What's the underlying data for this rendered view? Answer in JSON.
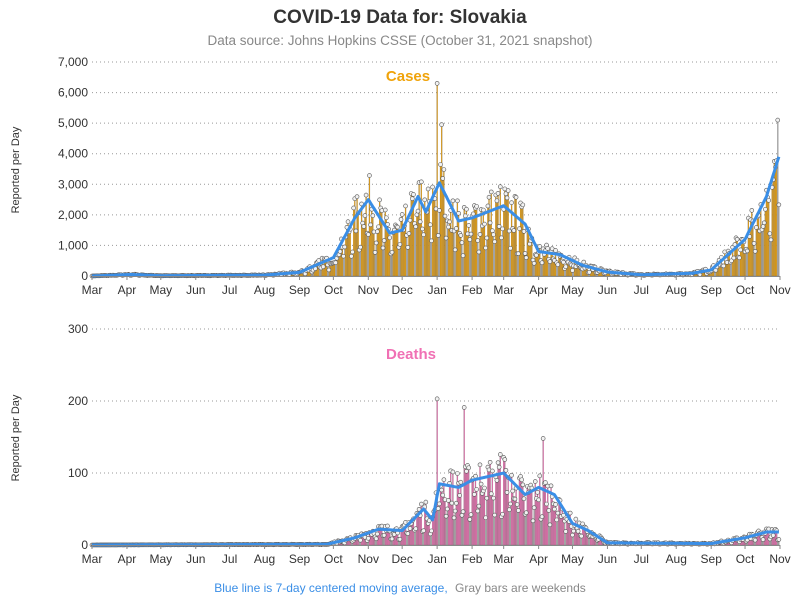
{
  "header": {
    "title": "COVID-19 Data for: Slovakia",
    "subtitle": "Data source: Johns Hopkins CSSE (October 31, 2021 snapshot)"
  },
  "footer": {
    "part1": "Blue line is 7-day centered moving average,",
    "part2": "Gray bars are weekends"
  },
  "colors": {
    "cases": "#f0a30a",
    "deaths": "#f070b4",
    "moving_average": "#3a8ee6",
    "footer_blue": "#3a8ee6",
    "footer_gray": "#888888"
  },
  "chart_data": [
    {
      "type": "bar",
      "title": "Cases",
      "ylabel": "Reported per Day",
      "ylim": [
        0,
        7000
      ],
      "yticks": [
        "0",
        "1,000",
        "2,000",
        "3,000",
        "4,000",
        "5,000",
        "6,000",
        "7,000"
      ],
      "ytick_values": [
        0,
        1000,
        2000,
        3000,
        4000,
        5000,
        6000,
        7000
      ],
      "x_labels": [
        "Mar",
        "Apr",
        "May",
        "Jun",
        "Jul",
        "Aug",
        "Sep",
        "Oct",
        "Nov",
        "Dec",
        "Jan",
        "Feb",
        "Mar",
        "Apr",
        "May",
        "Jun",
        "Jul",
        "Aug",
        "Sep",
        "Oct",
        "Nov"
      ],
      "x_range": [
        "2020-03-01",
        "2021-11-01"
      ],
      "series_name": "Cases",
      "overlay": "7-day centered moving average",
      "monthly_approx_daily_avg": [
        {
          "month": "2020-03",
          "value": 20
        },
        {
          "month": "2020-04",
          "value": 45
        },
        {
          "month": "2020-05",
          "value": 5
        },
        {
          "month": "2020-06",
          "value": 10
        },
        {
          "month": "2020-07",
          "value": 20
        },
        {
          "month": "2020-08",
          "value": 60
        },
        {
          "month": "2020-09",
          "value": 180
        },
        {
          "month": "2020-10",
          "value": 1300
        },
        {
          "month": "2020-11",
          "value": 1800
        },
        {
          "month": "2020-12",
          "value": 2300
        },
        {
          "month": "2021-01",
          "value": 2200
        },
        {
          "month": "2021-02",
          "value": 2000
        },
        {
          "month": "2021-03",
          "value": 1900
        },
        {
          "month": "2021-04",
          "value": 900
        },
        {
          "month": "2021-05",
          "value": 300
        },
        {
          "month": "2021-06",
          "value": 80
        },
        {
          "month": "2021-07",
          "value": 40
        },
        {
          "month": "2021-08",
          "value": 90
        },
        {
          "month": "2021-09",
          "value": 600
        },
        {
          "month": "2021-10",
          "value": 2200
        }
      ],
      "moving_average_keypoints": [
        {
          "x": "2020-03-01",
          "y": 0
        },
        {
          "x": "2020-04-05",
          "y": 50
        },
        {
          "x": "2020-05-01",
          "y": 10
        },
        {
          "x": "2020-08-01",
          "y": 30
        },
        {
          "x": "2020-09-01",
          "y": 120
        },
        {
          "x": "2020-10-01",
          "y": 600
        },
        {
          "x": "2020-10-20",
          "y": 1900
        },
        {
          "x": "2020-11-01",
          "y": 2500
        },
        {
          "x": "2020-11-20",
          "y": 1400
        },
        {
          "x": "2020-12-01",
          "y": 1500
        },
        {
          "x": "2020-12-15",
          "y": 2600
        },
        {
          "x": "2020-12-22",
          "y": 2100
        },
        {
          "x": "2021-01-03",
          "y": 3050
        },
        {
          "x": "2021-01-20",
          "y": 1800
        },
        {
          "x": "2021-02-01",
          "y": 1900
        },
        {
          "x": "2021-03-01",
          "y": 2300
        },
        {
          "x": "2021-03-20",
          "y": 1700
        },
        {
          "x": "2021-04-01",
          "y": 800
        },
        {
          "x": "2021-04-20",
          "y": 700
        },
        {
          "x": "2021-05-10",
          "y": 350
        },
        {
          "x": "2021-06-01",
          "y": 130
        },
        {
          "x": "2021-07-01",
          "y": 40
        },
        {
          "x": "2021-08-15",
          "y": 90
        },
        {
          "x": "2021-09-01",
          "y": 200
        },
        {
          "x": "2021-10-01",
          "y": 1200
        },
        {
          "x": "2021-10-20",
          "y": 2600
        },
        {
          "x": "2021-10-31",
          "y": 3900
        }
      ],
      "peaks": [
        {
          "x": "2021-01-01",
          "y": 6300
        },
        {
          "x": "2021-01-05",
          "y": 4950
        },
        {
          "x": "2021-10-30",
          "y": 5100
        }
      ]
    },
    {
      "type": "bar",
      "title": "Deaths",
      "ylabel": "Reported per Day",
      "ylim": [
        0,
        300
      ],
      "yticks": [
        "0",
        "100",
        "200",
        "300"
      ],
      "ytick_values": [
        0,
        100,
        200,
        300
      ],
      "x_labels": [
        "Mar",
        "Apr",
        "May",
        "Jun",
        "Jul",
        "Aug",
        "Sep",
        "Oct",
        "Nov",
        "Dec",
        "Jan",
        "Feb",
        "Mar",
        "Apr",
        "May",
        "Jun",
        "Jul",
        "Aug",
        "Sep",
        "Oct",
        "Nov"
      ],
      "x_range": [
        "2020-03-01",
        "2021-11-01"
      ],
      "series_name": "Deaths",
      "overlay": "7-day centered moving average",
      "monthly_approx_daily_avg": [
        {
          "month": "2020-03",
          "value": 0
        },
        {
          "month": "2020-04",
          "value": 1
        },
        {
          "month": "2020-05",
          "value": 0
        },
        {
          "month": "2020-06",
          "value": 0
        },
        {
          "month": "2020-07",
          "value": 0
        },
        {
          "month": "2020-08",
          "value": 0
        },
        {
          "month": "2020-09",
          "value": 1
        },
        {
          "month": "2020-10",
          "value": 8
        },
        {
          "month": "2020-11",
          "value": 20
        },
        {
          "month": "2020-12",
          "value": 35
        },
        {
          "month": "2021-01",
          "value": 85
        },
        {
          "month": "2021-02",
          "value": 95
        },
        {
          "month": "2021-03",
          "value": 95
        },
        {
          "month": "2021-04",
          "value": 70
        },
        {
          "month": "2021-05",
          "value": 20
        },
        {
          "month": "2021-06",
          "value": 4
        },
        {
          "month": "2021-07",
          "value": 1
        },
        {
          "month": "2021-08",
          "value": 1
        },
        {
          "month": "2021-09",
          "value": 2
        },
        {
          "month": "2021-10",
          "value": 12
        }
      ],
      "moving_average_keypoints": [
        {
          "x": "2020-03-01",
          "y": 0
        },
        {
          "x": "2020-09-25",
          "y": 1
        },
        {
          "x": "2020-10-20",
          "y": 10
        },
        {
          "x": "2020-11-10",
          "y": 22
        },
        {
          "x": "2020-12-01",
          "y": 20
        },
        {
          "x": "2020-12-20",
          "y": 50
        },
        {
          "x": "2020-12-28",
          "y": 35
        },
        {
          "x": "2021-01-03",
          "y": 85
        },
        {
          "x": "2021-01-20",
          "y": 80
        },
        {
          "x": "2021-02-01",
          "y": 90
        },
        {
          "x": "2021-02-15",
          "y": 95
        },
        {
          "x": "2021-03-01",
          "y": 100
        },
        {
          "x": "2021-03-20",
          "y": 70
        },
        {
          "x": "2021-04-01",
          "y": 80
        },
        {
          "x": "2021-04-15",
          "y": 70
        },
        {
          "x": "2021-05-01",
          "y": 30
        },
        {
          "x": "2021-05-15",
          "y": 20
        },
        {
          "x": "2021-06-01",
          "y": 3
        },
        {
          "x": "2021-09-01",
          "y": 2
        },
        {
          "x": "2021-10-01",
          "y": 10
        },
        {
          "x": "2021-10-20",
          "y": 18
        },
        {
          "x": "2021-10-31",
          "y": 18
        }
      ],
      "peaks": [
        {
          "x": "2021-01-01",
          "y": 203
        },
        {
          "x": "2021-01-25",
          "y": 191
        },
        {
          "x": "2021-04-05",
          "y": 148
        }
      ]
    }
  ]
}
